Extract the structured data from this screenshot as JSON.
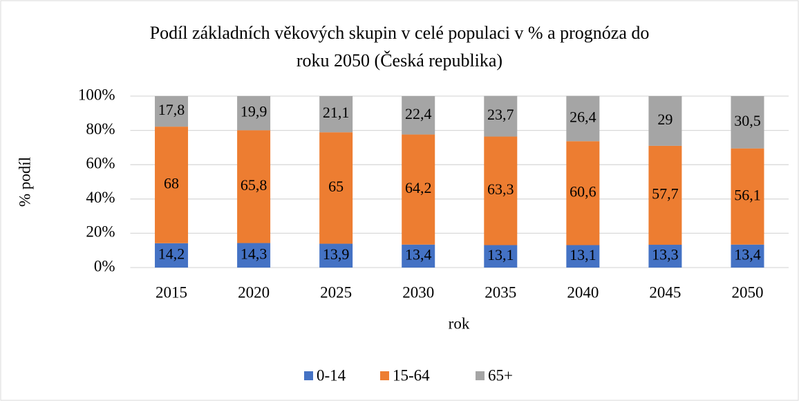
{
  "chart_data": {
    "type": "stacked_bar",
    "title": "Podíl základních věkových skupin v celé populaci v % a prognóza do roku 2050 (Česká republika)",
    "title_lines": [
      "Podíl základních věkových skupin v celé populaci v % a prognóza do",
      "roku 2050 (Česká republika)"
    ],
    "x_label": "rok",
    "y_label": "% podíl",
    "categories": [
      "2015",
      "2020",
      "2025",
      "2030",
      "2035",
      "2040",
      "2045",
      "2050"
    ],
    "series": [
      {
        "name": "0-14",
        "color": "#4472c4",
        "values": [
          14.2,
          14.3,
          13.9,
          13.4,
          13.1,
          13.1,
          13.3,
          13.4
        ],
        "value_labels": [
          "14,2",
          "14,3",
          "13,9",
          "13,4",
          "13,1",
          "13,1",
          "13,3",
          "13,4"
        ]
      },
      {
        "name": "15-64",
        "color": "#ed7d31",
        "values": [
          68,
          65.8,
          65,
          64.2,
          63.3,
          60.6,
          57.7,
          56.1
        ],
        "value_labels": [
          "68",
          "65,8",
          "65",
          "64,2",
          "63,3",
          "60,6",
          "57,7",
          "56,1"
        ]
      },
      {
        "name": "65+",
        "color": "#a5a5a5",
        "values": [
          17.8,
          19.9,
          21.1,
          22.4,
          23.7,
          26.4,
          29,
          30.5
        ],
        "value_labels": [
          "17,8",
          "19,9",
          "21,1",
          "22,4",
          "23,7",
          "26,4",
          "29",
          "30,5"
        ]
      }
    ],
    "ylim": [
      0,
      100
    ],
    "yticks": [
      {
        "value": 0,
        "label": "0%"
      },
      {
        "value": 20,
        "label": "20%"
      },
      {
        "value": 40,
        "label": "40%"
      },
      {
        "value": 60,
        "label": "60%"
      },
      {
        "value": 80,
        "label": "80%"
      },
      {
        "value": 100,
        "label": "100%"
      }
    ],
    "grid": true,
    "legend": "bottom"
  }
}
